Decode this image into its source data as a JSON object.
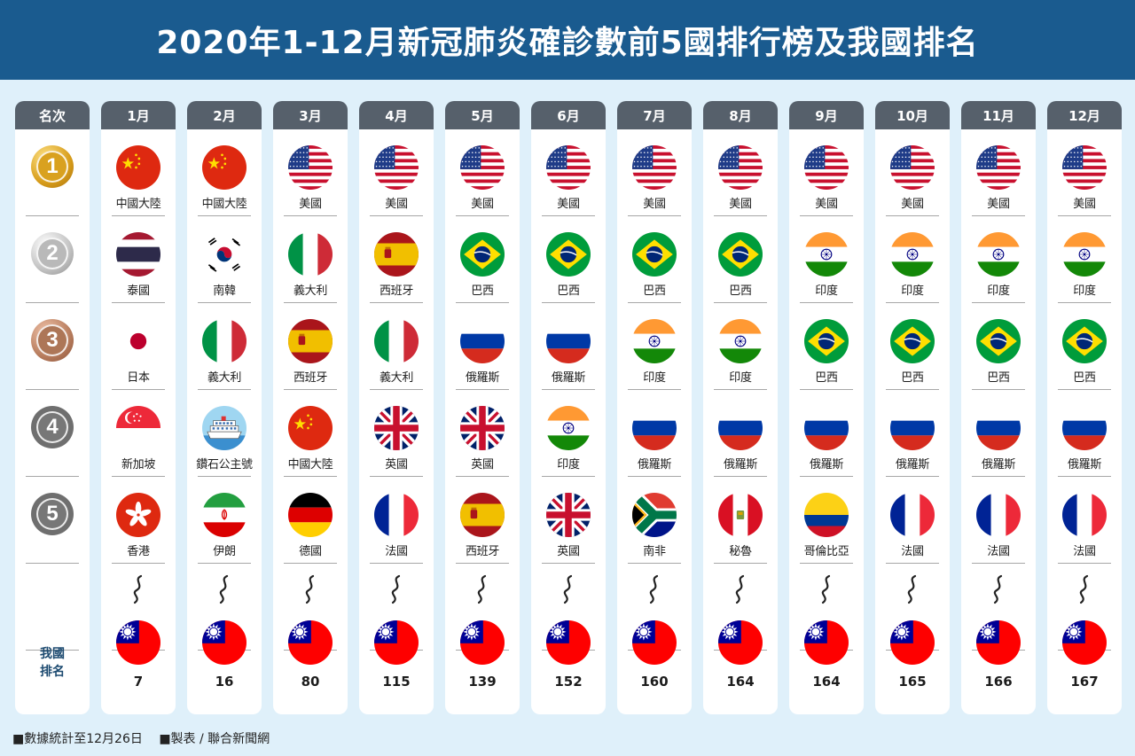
{
  "title": "2020年1-12月新冠肺炎確診數前5國排行榜及我國排名",
  "rank_header": "名次",
  "our_rank_label": [
    "我國",
    "排名"
  ],
  "medals": [
    "1",
    "2",
    "3",
    "4",
    "5"
  ],
  "months": [
    {
      "label": "1月",
      "countries": [
        "中國大陸",
        "泰國",
        "日本",
        "新加坡",
        "香港"
      ],
      "flags": [
        "china-flag",
        "thailand-flag",
        "japan-flag",
        "singapore-flag",
        "hongkong-flag"
      ],
      "taiwan_rank": "7"
    },
    {
      "label": "2月",
      "countries": [
        "中國大陸",
        "南韓",
        "義大利",
        "鑽石公主號",
        "伊朗"
      ],
      "flags": [
        "china-flag",
        "korea-flag",
        "italy-flag",
        "cruise-ship-icon",
        "iran-flag"
      ],
      "taiwan_rank": "16"
    },
    {
      "label": "3月",
      "countries": [
        "美國",
        "義大利",
        "西班牙",
        "中國大陸",
        "德國"
      ],
      "flags": [
        "usa-flag",
        "italy-flag",
        "spain-flag",
        "china-flag",
        "germany-flag"
      ],
      "taiwan_rank": "80"
    },
    {
      "label": "4月",
      "countries": [
        "美國",
        "西班牙",
        "義大利",
        "英國",
        "法國"
      ],
      "flags": [
        "usa-flag",
        "spain-flag",
        "italy-flag",
        "uk-flag",
        "france-flag"
      ],
      "taiwan_rank": "115"
    },
    {
      "label": "5月",
      "countries": [
        "美國",
        "巴西",
        "俄羅斯",
        "英國",
        "西班牙"
      ],
      "flags": [
        "usa-flag",
        "brazil-flag",
        "russia-flag",
        "uk-flag",
        "spain-flag"
      ],
      "taiwan_rank": "139"
    },
    {
      "label": "6月",
      "countries": [
        "美國",
        "巴西",
        "俄羅斯",
        "印度",
        "英國"
      ],
      "flags": [
        "usa-flag",
        "brazil-flag",
        "russia-flag",
        "india-flag",
        "uk-flag"
      ],
      "taiwan_rank": "152"
    },
    {
      "label": "7月",
      "countries": [
        "美國",
        "巴西",
        "印度",
        "俄羅斯",
        "南非"
      ],
      "flags": [
        "usa-flag",
        "brazil-flag",
        "india-flag",
        "russia-flag",
        "southafrica-flag"
      ],
      "taiwan_rank": "160"
    },
    {
      "label": "8月",
      "countries": [
        "美國",
        "巴西",
        "印度",
        "俄羅斯",
        "秘魯"
      ],
      "flags": [
        "usa-flag",
        "brazil-flag",
        "india-flag",
        "russia-flag",
        "peru-flag"
      ],
      "taiwan_rank": "164"
    },
    {
      "label": "9月",
      "countries": [
        "美國",
        "印度",
        "巴西",
        "俄羅斯",
        "哥倫比亞"
      ],
      "flags": [
        "usa-flag",
        "india-flag",
        "brazil-flag",
        "russia-flag",
        "colombia-flag"
      ],
      "taiwan_rank": "164"
    },
    {
      "label": "10月",
      "countries": [
        "美國",
        "印度",
        "巴西",
        "俄羅斯",
        "法國"
      ],
      "flags": [
        "usa-flag",
        "india-flag",
        "brazil-flag",
        "russia-flag",
        "france-flag"
      ],
      "taiwan_rank": "165"
    },
    {
      "label": "11月",
      "countries": [
        "美國",
        "印度",
        "巴西",
        "俄羅斯",
        "法國"
      ],
      "flags": [
        "usa-flag",
        "india-flag",
        "brazil-flag",
        "russia-flag",
        "france-flag"
      ],
      "taiwan_rank": "166"
    },
    {
      "label": "12月",
      "countries": [
        "美國",
        "印度",
        "巴西",
        "俄羅斯",
        "法國"
      ],
      "flags": [
        "usa-flag",
        "india-flag",
        "brazil-flag",
        "russia-flag",
        "france-flag"
      ],
      "taiwan_rank": "167"
    }
  ],
  "our_flag": "taiwan-flag",
  "footer": {
    "note1": "■數據統計至12月26日",
    "note2": "■製表 / 聯合新聞網"
  },
  "colors": {
    "title_bg": "#1a5b8f",
    "header_bg": "#56606b",
    "page_bg": "#dff0fa"
  }
}
